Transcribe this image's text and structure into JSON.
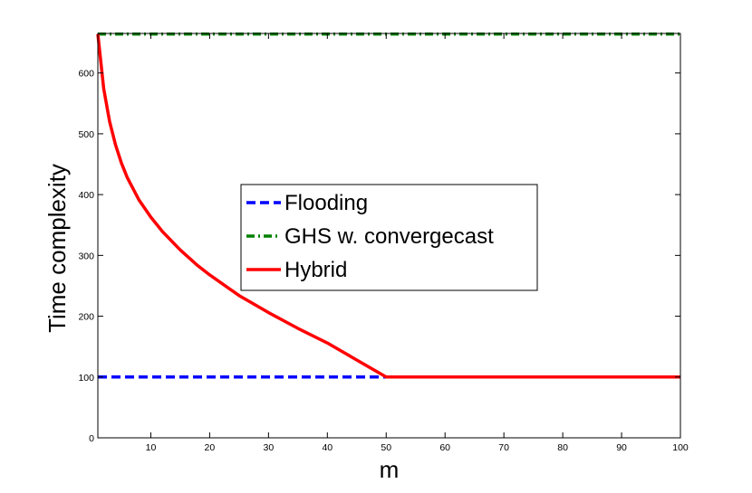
{
  "chart_data": {
    "type": "line",
    "title": "",
    "xlabel": "m",
    "ylabel": "Time complexity",
    "xlim": [
      1,
      100
    ],
    "ylim": [
      0,
      665
    ],
    "xticks": [
      10,
      20,
      30,
      40,
      50,
      60,
      70,
      80,
      90,
      100
    ],
    "yticks": [
      0,
      100,
      200,
      300,
      400,
      500,
      600
    ],
    "grid": false,
    "legend": "center",
    "series": [
      {
        "name": "Flooding",
        "color": "#0000ff",
        "style": "dashed",
        "x": [
          1,
          50
        ],
        "y": [
          100,
          100
        ]
      },
      {
        "name": "GHS w. convergecast",
        "color": "#008000",
        "style": "dash-dot",
        "x": [
          1,
          100
        ],
        "y": [
          664,
          664
        ]
      },
      {
        "name": "Hybrid",
        "color": "#ff0000",
        "style": "solid",
        "x": [
          1,
          2,
          3,
          4,
          5,
          6,
          8,
          10,
          12,
          15,
          18,
          20,
          25,
          30,
          35,
          40,
          45,
          50,
          60,
          70,
          80,
          90,
          100
        ],
        "y": [
          664,
          574,
          520,
          482,
          452,
          428,
          391,
          363,
          339,
          309,
          283,
          268,
          234,
          206,
          180,
          156,
          128,
          100,
          100,
          100,
          100,
          100,
          100
        ]
      }
    ]
  }
}
